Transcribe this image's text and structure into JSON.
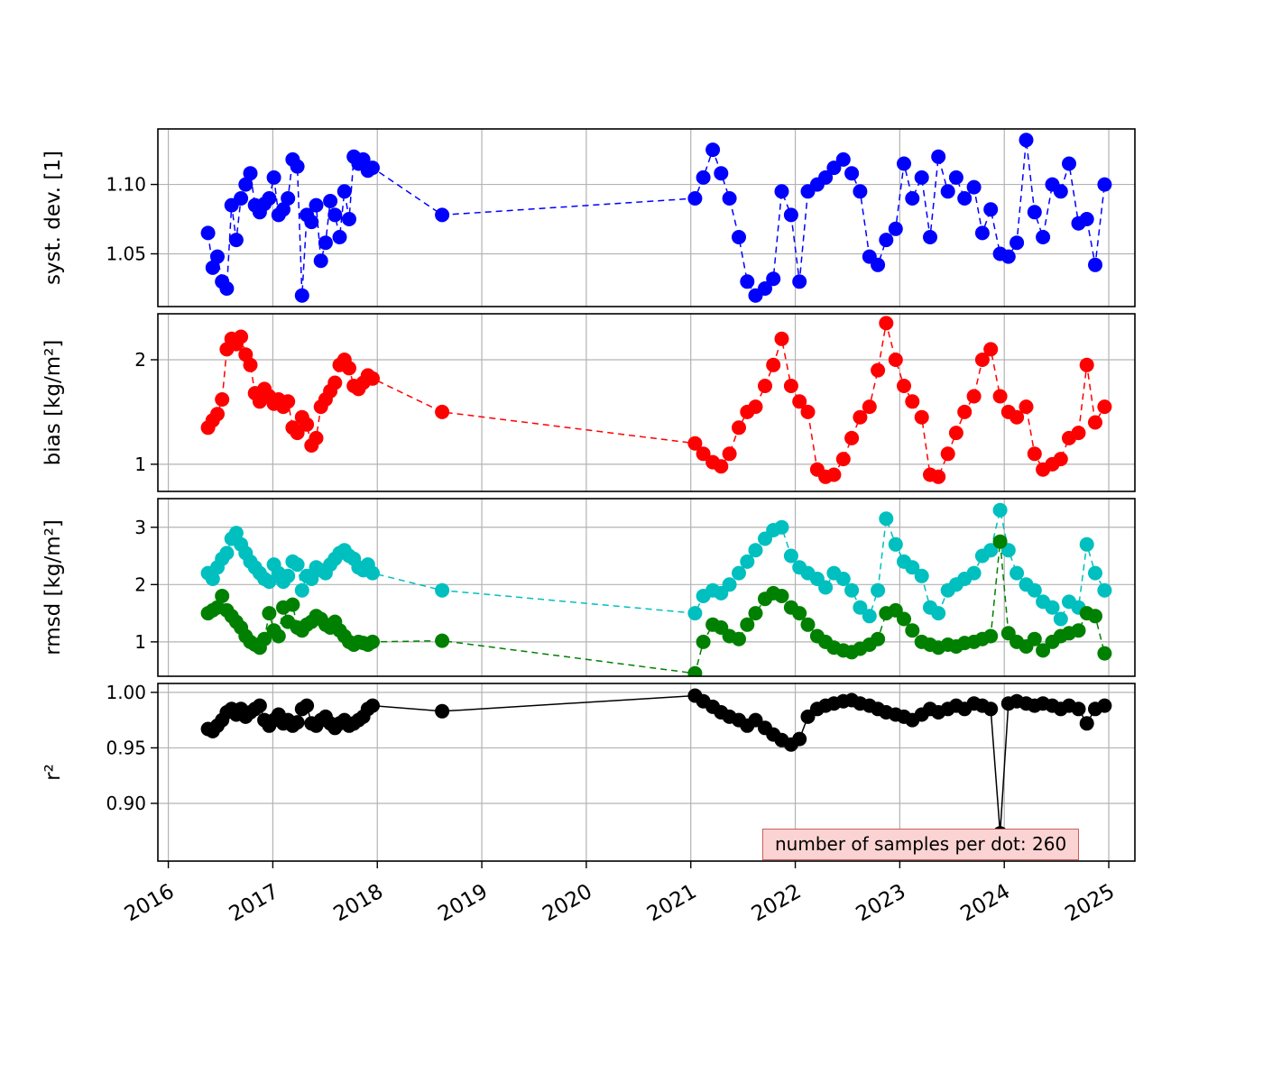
{
  "chart_data": {
    "type": "scatter",
    "grid": true,
    "grid_color": "#b3b3b3",
    "xlim": [
      2015.9,
      2025.25
    ],
    "xticks": [
      2016,
      2017,
      2018,
      2019,
      2020,
      2021,
      2022,
      2023,
      2024,
      2025
    ],
    "x": [
      2016.38,
      2016.425,
      2016.47,
      2016.515,
      2016.56,
      2016.605,
      2016.65,
      2016.695,
      2016.74,
      2016.785,
      2016.83,
      2016.875,
      2016.92,
      2016.965,
      2017.01,
      2017.055,
      2017.1,
      2017.145,
      2017.19,
      2017.235,
      2017.28,
      2017.325,
      2017.37,
      2017.415,
      2017.46,
      2017.505,
      2017.55,
      2017.595,
      2017.64,
      2017.685,
      2017.73,
      2017.775,
      2017.82,
      2017.865,
      2017.91,
      2017.955,
      2018.62,
      2021.04,
      2021.12,
      2021.21,
      2021.29,
      2021.37,
      2021.46,
      2021.54,
      2021.62,
      2021.71,
      2021.79,
      2021.87,
      2021.96,
      2022.04,
      2022.12,
      2022.21,
      2022.29,
      2022.37,
      2022.46,
      2022.54,
      2022.62,
      2022.71,
      2022.79,
      2022.87,
      2022.96,
      2023.04,
      2023.12,
      2023.21,
      2023.29,
      2023.37,
      2023.46,
      2023.54,
      2023.62,
      2023.71,
      2023.79,
      2023.87,
      2023.96,
      2024.04,
      2024.12,
      2024.21,
      2024.29,
      2024.37,
      2024.46,
      2024.54,
      2024.62,
      2024.71,
      2024.79,
      2024.87,
      2024.96
    ],
    "panels": [
      {
        "id": "syst-dev",
        "ylabel": "syst. dev. [1]",
        "ylim": [
          1.012,
          1.14
        ],
        "yticks": [
          1.05,
          1.1
        ],
        "ytick_labels": [
          "1.05",
          "1.10"
        ],
        "series": [
          {
            "id": "syst-dev",
            "color": "#0000ff",
            "line": "dashed",
            "y": [
              1.065,
              1.04,
              1.048,
              1.03,
              1.025,
              1.085,
              1.06,
              1.09,
              1.1,
              1.108,
              1.085,
              1.08,
              1.086,
              1.09,
              1.105,
              1.078,
              1.082,
              1.09,
              1.118,
              1.113,
              1.02,
              1.078,
              1.073,
              1.085,
              1.045,
              1.058,
              1.088,
              1.078,
              1.062,
              1.095,
              1.075,
              1.12,
              1.115,
              1.118,
              1.11,
              1.112,
              1.078,
              1.09,
              1.105,
              1.125,
              1.108,
              1.09,
              1.062,
              1.03,
              1.02,
              1.025,
              1.032,
              1.095,
              1.078,
              1.03,
              1.095,
              1.1,
              1.105,
              1.112,
              1.118,
              1.108,
              1.095,
              1.048,
              1.042,
              1.06,
              1.068,
              1.115,
              1.09,
              1.105,
              1.062,
              1.12,
              1.095,
              1.105,
              1.09,
              1.098,
              1.065,
              1.082,
              1.05,
              1.048,
              1.058,
              1.132,
              1.08,
              1.062,
              1.1,
              1.095,
              1.115,
              1.072,
              1.075,
              1.042,
              1.1
            ]
          }
        ]
      },
      {
        "id": "bias",
        "ylabel": "bias [kg/m²]",
        "ylim": [
          0.74,
          2.44
        ],
        "yticks": [
          1,
          2
        ],
        "ytick_labels": [
          "1",
          "2"
        ],
        "series": [
          {
            "id": "bias",
            "color": "#ff0000",
            "line": "dashed",
            "y": [
              1.35,
              1.42,
              1.48,
              1.62,
              2.1,
              2.2,
              2.15,
              2.22,
              2.05,
              1.95,
              1.68,
              1.6,
              1.72,
              1.65,
              1.58,
              1.62,
              1.55,
              1.6,
              1.35,
              1.3,
              1.45,
              1.38,
              1.18,
              1.25,
              1.55,
              1.62,
              1.7,
              1.78,
              1.95,
              2.0,
              1.92,
              1.75,
              1.72,
              1.78,
              1.85,
              1.82,
              1.5,
              1.2,
              1.1,
              1.02,
              0.98,
              1.1,
              1.35,
              1.5,
              1.55,
              1.75,
              1.95,
              2.2,
              1.75,
              1.6,
              1.5,
              0.95,
              0.88,
              0.9,
              1.05,
              1.25,
              1.45,
              1.55,
              1.9,
              2.35,
              2.0,
              1.75,
              1.6,
              1.45,
              0.9,
              0.88,
              1.1,
              1.3,
              1.5,
              1.65,
              2.0,
              2.1,
              1.65,
              1.5,
              1.45,
              1.55,
              1.1,
              0.95,
              1.0,
              1.05,
              1.25,
              1.3,
              1.95,
              1.4,
              1.55
            ]
          }
        ]
      },
      {
        "id": "rmsd",
        "ylabel": "rmsd [kg/m²]",
        "ylim": [
          0.4,
          3.5
        ],
        "yticks": [
          1,
          2,
          3
        ],
        "ytick_labels": [
          "1",
          "2",
          "3"
        ],
        "series": [
          {
            "id": "rmsd-a",
            "color": "#00bfbf",
            "line": "dashed",
            "y": [
              2.2,
              2.1,
              2.3,
              2.45,
              2.55,
              2.8,
              2.9,
              2.7,
              2.55,
              2.4,
              2.3,
              2.2,
              2.1,
              2.05,
              2.35,
              2.2,
              2.05,
              2.15,
              2.4,
              2.35,
              1.9,
              2.15,
              2.1,
              2.3,
              2.25,
              2.2,
              2.35,
              2.45,
              2.55,
              2.6,
              2.5,
              2.45,
              2.3,
              2.25,
              2.35,
              2.2,
              1.9,
              1.5,
              1.8,
              1.9,
              1.85,
              2.0,
              2.2,
              2.4,
              2.6,
              2.8,
              2.95,
              3.0,
              2.5,
              2.3,
              2.2,
              2.1,
              1.95,
              2.2,
              2.1,
              1.9,
              1.6,
              1.45,
              1.9,
              3.15,
              2.7,
              2.4,
              2.3,
              2.15,
              1.6,
              1.5,
              1.9,
              2.0,
              2.1,
              2.2,
              2.5,
              2.6,
              3.3,
              2.6,
              2.2,
              2.0,
              1.9,
              1.7,
              1.6,
              1.4,
              1.7,
              1.6,
              2.7,
              2.2,
              1.9
            ]
          },
          {
            "id": "rmsd-b",
            "color": "#008000",
            "line": "dashed",
            "y": [
              1.5,
              1.55,
              1.6,
              1.8,
              1.55,
              1.45,
              1.35,
              1.25,
              1.1,
              1.0,
              0.95,
              0.9,
              1.05,
              1.5,
              1.2,
              1.1,
              1.6,
              1.35,
              1.65,
              1.25,
              1.2,
              1.3,
              1.35,
              1.45,
              1.4,
              1.3,
              1.25,
              1.35,
              1.2,
              1.1,
              1.0,
              0.95,
              1.0,
              0.98,
              0.95,
              1.0,
              1.02,
              0.45,
              1.0,
              1.3,
              1.25,
              1.1,
              1.05,
              1.3,
              1.5,
              1.75,
              1.85,
              1.8,
              1.6,
              1.5,
              1.3,
              1.1,
              1.0,
              0.9,
              0.85,
              0.82,
              0.88,
              0.95,
              1.05,
              1.5,
              1.55,
              1.4,
              1.2,
              1.0,
              0.95,
              0.9,
              0.95,
              0.92,
              0.98,
              1.0,
              1.05,
              1.1,
              2.75,
              1.15,
              1.0,
              0.92,
              1.05,
              0.85,
              1.0,
              1.1,
              1.15,
              1.2,
              1.5,
              1.45,
              0.8
            ]
          }
        ]
      },
      {
        "id": "r2",
        "ylabel": "r²",
        "ylim": [
          0.848,
          1.008
        ],
        "yticks": [
          0.9,
          0.95,
          1.0
        ],
        "ytick_labels": [
          "0.90",
          "0.95",
          "1.00"
        ],
        "series": [
          {
            "id": "r2",
            "color": "#000000",
            "line": "solid",
            "y": [
              0.967,
              0.965,
              0.97,
              0.975,
              0.982,
              0.985,
              0.98,
              0.985,
              0.978,
              0.982,
              0.985,
              0.988,
              0.975,
              0.97,
              0.975,
              0.98,
              0.972,
              0.975,
              0.97,
              0.973,
              0.985,
              0.988,
              0.972,
              0.97,
              0.975,
              0.978,
              0.972,
              0.968,
              0.972,
              0.975,
              0.97,
              0.972,
              0.975,
              0.978,
              0.985,
              0.988,
              0.983,
              0.997,
              0.992,
              0.987,
              0.982,
              0.978,
              0.975,
              0.97,
              0.975,
              0.968,
              0.962,
              0.957,
              0.953,
              0.958,
              0.978,
              0.985,
              0.988,
              0.99,
              0.992,
              0.993,
              0.99,
              0.988,
              0.985,
              0.982,
              0.98,
              0.978,
              0.975,
              0.98,
              0.985,
              0.982,
              0.985,
              0.988,
              0.985,
              0.99,
              0.988,
              0.985,
              0.873,
              0.99,
              0.992,
              0.99,
              0.988,
              0.99,
              0.988,
              0.985,
              0.988,
              0.985,
              0.972,
              0.985,
              0.988
            ]
          }
        ],
        "annotation": {
          "text": "number of samples per dot: 260",
          "bg": "#fbd3d3",
          "border": "#cd5c5c"
        }
      }
    ]
  }
}
